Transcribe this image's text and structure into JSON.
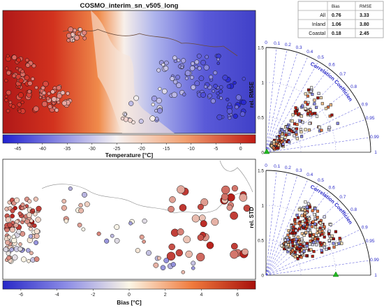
{
  "figure": {
    "title": "COSMO_interim_sn_v505_long",
    "map_top": {
      "colorbar_label": "Temperature [°C]",
      "colorbar_ticks": [
        "-45",
        "-40",
        "-35",
        "-30",
        "-25",
        "-20",
        "-15",
        "-10",
        "-5",
        "0"
      ],
      "colorbar_range": [
        -48,
        3
      ],
      "colors": {
        "cold": "#2a2ad2",
        "mid": "#f5f1ee",
        "warm": "#d22a1e"
      }
    },
    "map_bottom": {
      "colorbar_label": "Bias [°C]",
      "colorbar_ticks": [
        "-6",
        "-4",
        "-2",
        "0",
        "2",
        "4",
        "6"
      ],
      "colorbar_range": [
        -7,
        7
      ],
      "colors": {
        "cold": "#2a2ad2",
        "mid": "#fbf6e6",
        "warm": "#b4140f"
      }
    },
    "stats_table": {
      "headers": [
        "",
        "Bias",
        "RMSE"
      ],
      "rows": [
        [
          "All",
          "0.76",
          "3.33"
        ],
        [
          "Inland",
          "1.06",
          "3.80"
        ],
        [
          "Coastal",
          "0.18",
          "2.45"
        ]
      ]
    },
    "taylor_top": {
      "ylabel": "rel. RMSE",
      "arc_label": "Correlation Coefficient",
      "radial_ticks": [
        "0",
        "0.5",
        "1",
        "1.5"
      ],
      "correlation_ticks": [
        "0",
        "0.1",
        "0.2",
        "0.3",
        "0.4",
        "0.5",
        "0.6",
        "0.7",
        "0.8",
        "0.9",
        "0.95",
        "0.99",
        "1"
      ]
    },
    "taylor_bottom": {
      "ylabel": "rel. STD",
      "arc_label": "Correlation Coefficient",
      "radial_ticks": [
        "0",
        "0.5",
        "1",
        "1.5"
      ],
      "correlation_ticks": [
        "0",
        "0.1",
        "0.2",
        "0.3",
        "0.4",
        "0.5",
        "0.6",
        "0.7",
        "0.8",
        "0.9",
        "0.95",
        "0.99",
        "1"
      ]
    }
  },
  "chart_data": [
    {
      "type": "heatmap",
      "title": "COSMO_interim_sn_v505_long",
      "colorbar_label": "Temperature [°C]",
      "colorbar_range": [
        -48,
        3
      ],
      "colorbar_ticks": [
        -45,
        -40,
        -35,
        -30,
        -25,
        -20,
        -15,
        -10,
        -5,
        0
      ]
    },
    {
      "type": "scatter",
      "colorbar_label": "Bias [°C]",
      "colorbar_range": [
        -7,
        7
      ],
      "colorbar_ticks": [
        -6,
        -4,
        -2,
        0,
        2,
        4,
        6
      ]
    },
    {
      "type": "table",
      "headers": [
        "",
        "Bias",
        "RMSE"
      ],
      "rows": [
        [
          "All",
          0.76,
          3.33
        ],
        [
          "Inland",
          1.06,
          3.8
        ],
        [
          "Coastal",
          0.18,
          2.45
        ]
      ]
    },
    {
      "type": "scatter",
      "ylabel": "rel. RMSE",
      "radial_range": [
        0,
        1.5
      ],
      "correlation_ticks": [
        0,
        0.1,
        0.2,
        0.3,
        0.4,
        0.5,
        0.6,
        0.7,
        0.8,
        0.9,
        0.95,
        0.99,
        1
      ],
      "reference_point": [
        0,
        0
      ]
    },
    {
      "type": "scatter",
      "ylabel": "rel. STD",
      "radial_range": [
        0,
        1.5
      ],
      "correlation_ticks": [
        0,
        0.1,
        0.2,
        0.3,
        0.4,
        0.5,
        0.6,
        0.7,
        0.8,
        0.9,
        0.95,
        0.99,
        1
      ],
      "reference_point": [
        1,
        0
      ]
    }
  ]
}
